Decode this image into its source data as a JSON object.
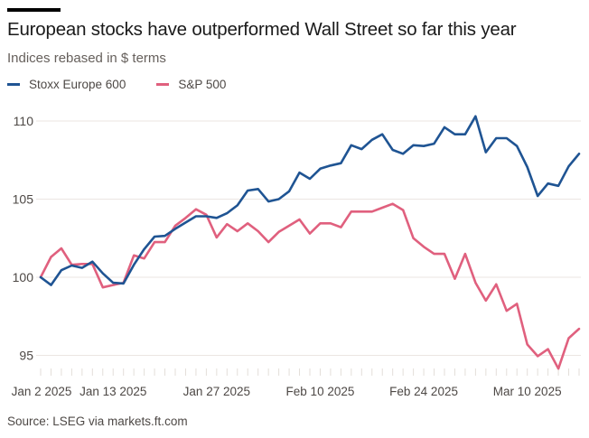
{
  "header": {
    "title": "European stocks have outperformed Wall Street so far this year",
    "subtitle": "Indices rebased in $ terms"
  },
  "legend": [
    {
      "label": "Stoxx Europe 600",
      "color": "#1f5493"
    },
    {
      "label": "S&P 500",
      "color": "#e0607e"
    }
  ],
  "footer": {
    "source": "Source: LSEG via markets.ft.com"
  },
  "chart_data": {
    "type": "line",
    "title": "European stocks have outperformed Wall Street so far this year",
    "subtitle": "Indices rebased in $ terms",
    "xlabel": "",
    "ylabel": "",
    "ylim": [
      94,
      111
    ],
    "yticks": [
      95,
      100,
      105,
      110
    ],
    "ytick_labels": [
      "95",
      "100",
      "105",
      "110"
    ],
    "xtick_labels": [
      {
        "index": 0,
        "label": "Jan 2 2025"
      },
      {
        "index": 7,
        "label": "Jan 13 2025"
      },
      {
        "index": 17,
        "label": "Jan 27 2025"
      },
      {
        "index": 27,
        "label": "Feb 10 2025"
      },
      {
        "index": 37,
        "label": "Feb 24 2025"
      },
      {
        "index": 47,
        "label": "Mar 10 2025"
      }
    ],
    "num_points": 53,
    "grid": true,
    "legend_position": "top-left",
    "series": [
      {
        "name": "Stoxx Europe 600",
        "color": "#1f5493",
        "values": [
          100,
          99.5,
          100.45,
          100.75,
          100.6,
          101.0,
          100.25,
          99.65,
          99.6,
          100.8,
          101.8,
          102.6,
          102.65,
          103.1,
          103.5,
          103.9,
          103.9,
          103.8,
          104.1,
          104.6,
          105.55,
          105.65,
          104.85,
          105.0,
          105.5,
          106.7,
          106.3,
          106.95,
          107.15,
          107.3,
          108.45,
          108.2,
          108.8,
          109.15,
          108.15,
          107.9,
          108.45,
          108.4,
          108.55,
          109.6,
          109.15,
          109.15,
          110.3,
          108.0,
          108.9,
          108.9,
          108.4,
          107.05,
          105.2,
          106.0,
          105.85,
          107.1,
          107.9
        ]
      },
      {
        "name": "S&P 500",
        "color": "#e0607e",
        "values": [
          100,
          101.3,
          101.85,
          100.8,
          100.85,
          100.85,
          99.35,
          99.5,
          99.65,
          101.4,
          101.2,
          102.25,
          102.25,
          103.3,
          103.8,
          104.35,
          104.0,
          102.55,
          103.4,
          102.95,
          103.45,
          102.95,
          102.25,
          102.9,
          103.3,
          103.7,
          102.8,
          103.45,
          103.45,
          103.2,
          104.2,
          104.2,
          104.2,
          104.45,
          104.7,
          104.3,
          102.5,
          101.95,
          101.5,
          101.5,
          99.9,
          101.5,
          99.65,
          98.5,
          99.55,
          97.85,
          98.3,
          95.7,
          94.95,
          95.4,
          94.15,
          96.1,
          96.7
        ]
      }
    ]
  }
}
